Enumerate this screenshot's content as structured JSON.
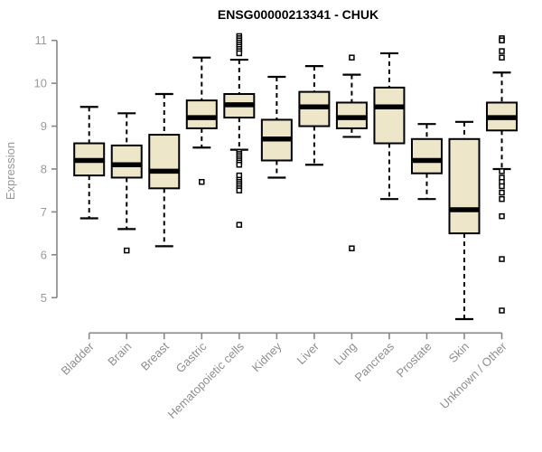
{
  "colors": {
    "box_fill": "#EDE6C9",
    "box_border": "#000000",
    "median": "#000000",
    "whisker": "#000000",
    "outlier_border": "#000000",
    "outlier_fill": "#FFFFFF",
    "axis_line": "#888888",
    "tick_text": "#9A9A9A",
    "title_text": "#000000"
  },
  "chart_data": {
    "type": "boxplot",
    "title": "ENSG00000213341 - CHUK",
    "ylabel": "Expression",
    "xlabel": "",
    "grid": false,
    "legend": "none",
    "y_axis": {
      "ticks": [
        5,
        6,
        7,
        8,
        9,
        10,
        11
      ],
      "range": [
        4.3,
        11.3
      ]
    },
    "categories": [
      "Bladder",
      "Brain",
      "Breast",
      "Gastric",
      "Hematopoietic cells",
      "Kidney",
      "Liver",
      "Lung",
      "Pancreas",
      "Prostate",
      "Skin",
      "Unknown / Other"
    ],
    "boxes": [
      {
        "category": "Bladder",
        "whisker_low": 6.85,
        "q1": 7.85,
        "median": 8.2,
        "q3": 8.6,
        "whisker_high": 9.45,
        "outliers": []
      },
      {
        "category": "Brain",
        "whisker_low": 6.6,
        "q1": 7.8,
        "median": 8.1,
        "q3": 8.55,
        "whisker_high": 9.3,
        "outliers": [
          6.1
        ]
      },
      {
        "category": "Breast",
        "whisker_low": 6.2,
        "q1": 7.55,
        "median": 7.95,
        "q3": 8.8,
        "whisker_high": 9.75,
        "outliers": []
      },
      {
        "category": "Gastric",
        "whisker_low": 8.5,
        "q1": 8.95,
        "median": 9.2,
        "q3": 9.6,
        "whisker_high": 10.6,
        "outliers": [
          7.7
        ]
      },
      {
        "category": "Hematopoietic cells",
        "whisker_low": 8.45,
        "q1": 9.2,
        "median": 9.5,
        "q3": 9.75,
        "whisker_high": 10.55,
        "outliers": [
          11.1,
          11.05,
          11.0,
          10.95,
          10.9,
          10.85,
          10.8,
          10.75,
          10.7,
          8.4,
          8.35,
          8.3,
          8.25,
          8.2,
          8.15,
          8.1,
          7.85,
          7.75,
          7.7,
          7.65,
          7.6,
          7.55,
          7.5,
          6.7
        ]
      },
      {
        "category": "Kidney",
        "whisker_low": 7.8,
        "q1": 8.2,
        "median": 8.7,
        "q3": 9.15,
        "whisker_high": 10.15,
        "outliers": []
      },
      {
        "category": "Liver",
        "whisker_low": 8.1,
        "q1": 9.0,
        "median": 9.45,
        "q3": 9.8,
        "whisker_high": 10.4,
        "outliers": []
      },
      {
        "category": "Lung",
        "whisker_low": 8.75,
        "q1": 8.95,
        "median": 9.2,
        "q3": 9.55,
        "whisker_high": 10.2,
        "outliers": [
          10.6,
          6.15
        ]
      },
      {
        "category": "Pancreas",
        "whisker_low": 7.3,
        "q1": 8.6,
        "median": 9.45,
        "q3": 9.9,
        "whisker_high": 10.7,
        "outliers": []
      },
      {
        "category": "Prostate",
        "whisker_low": 7.3,
        "q1": 7.9,
        "median": 8.2,
        "q3": 8.7,
        "whisker_high": 9.05,
        "outliers": []
      },
      {
        "category": "Skin",
        "whisker_low": 4.5,
        "q1": 6.5,
        "median": 7.05,
        "q3": 8.7,
        "whisker_high": 9.1,
        "outliers": []
      },
      {
        "category": "Unknown / Other",
        "whisker_low": 8.0,
        "q1": 8.9,
        "median": 9.2,
        "q3": 9.55,
        "whisker_high": 10.25,
        "outliers": [
          11.05,
          11.0,
          10.75,
          10.6,
          7.95,
          7.8,
          7.7,
          7.6,
          7.45,
          7.3,
          6.9,
          5.9,
          4.7
        ]
      }
    ]
  }
}
